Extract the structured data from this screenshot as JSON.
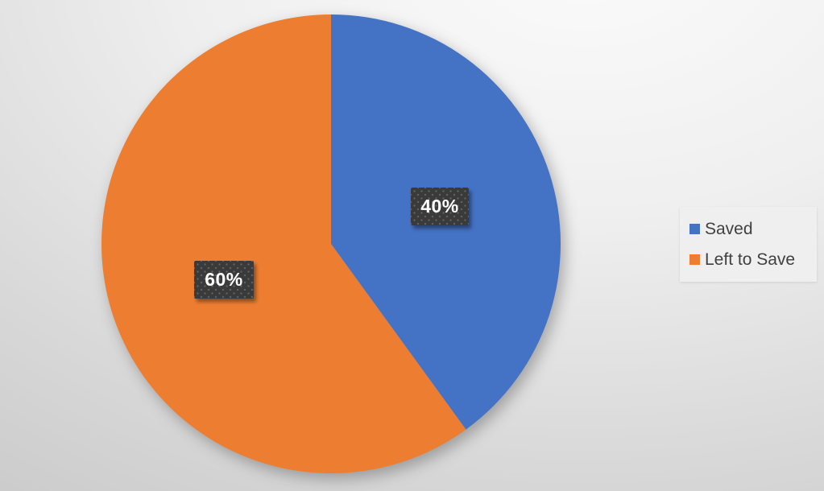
{
  "chart_data": {
    "type": "pie",
    "labels": [
      "Saved",
      "Left to Save"
    ],
    "values": [
      40,
      60
    ],
    "colors": [
      "#4472C4",
      "#ED7D31"
    ],
    "data_labels": [
      "40%",
      "60%"
    ],
    "legend_position": "right",
    "start_angle_deg": 0,
    "direction": "clockwise"
  },
  "theme": {
    "data_label_bg": "#3A3A3A",
    "data_label_text": "#FFFFFF",
    "legend_bg": "#EFEFEF",
    "legend_text": "#404040",
    "background_top": "#FBFBFB",
    "background_bottom": "#C6C6C6"
  }
}
